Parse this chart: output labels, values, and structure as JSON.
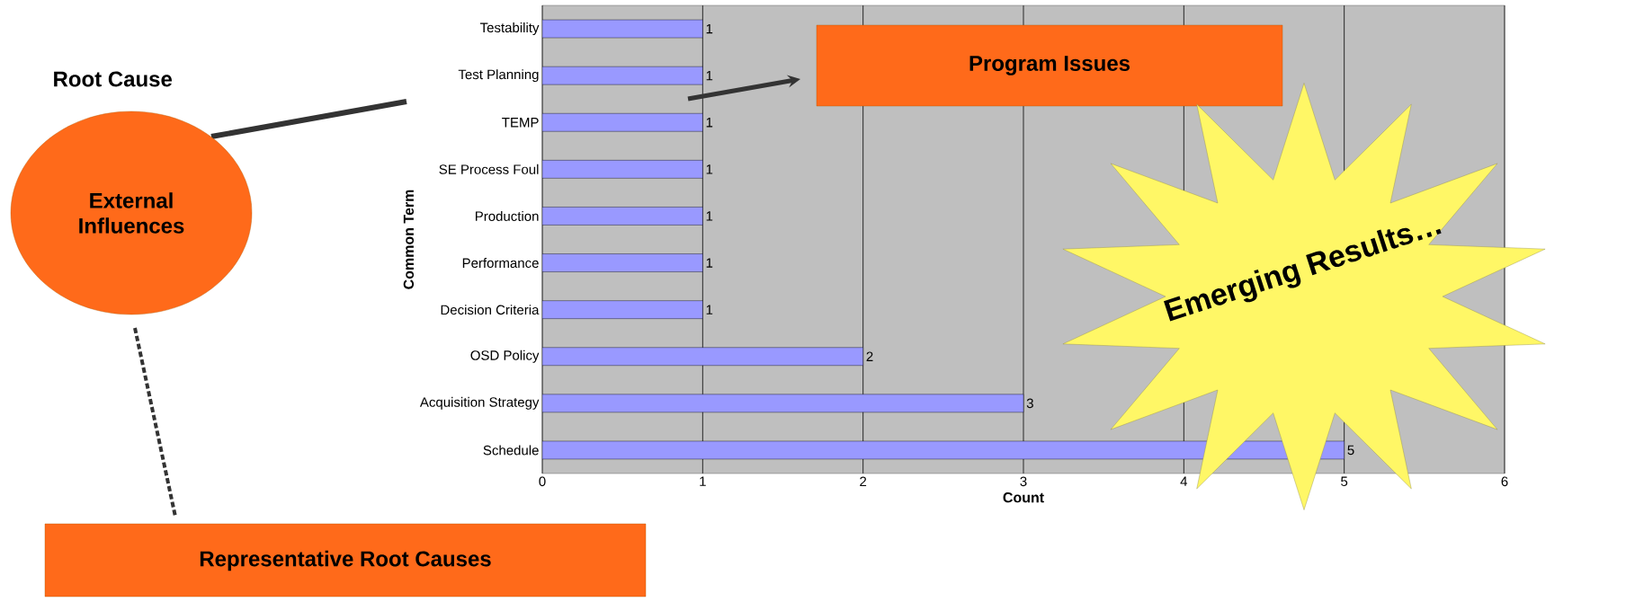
{
  "chart_data": {
    "type": "bar",
    "orientation": "horizontal",
    "categories": [
      "Testability",
      "Test Planning",
      "TEMP",
      "SE Process Foul",
      "Production",
      "Performance",
      "Decision Criteria",
      "OSD Policy",
      "Acquisition Strategy",
      "Schedule"
    ],
    "values": [
      1,
      1,
      1,
      1,
      1,
      1,
      1,
      2,
      3,
      5
    ],
    "color": "#9999ff",
    "xlim": [
      0,
      6
    ],
    "xticks": [
      0,
      1,
      2,
      3,
      4,
      5,
      6
    ],
    "xlabel": "Count",
    "ylabel": "Common Term",
    "grid": "x",
    "data_labels": true,
    "annotations": [
      "Root Cause",
      "External Influences",
      "Program Issues",
      "Emerging Results…",
      "Representative Root Causes"
    ]
  }
}
